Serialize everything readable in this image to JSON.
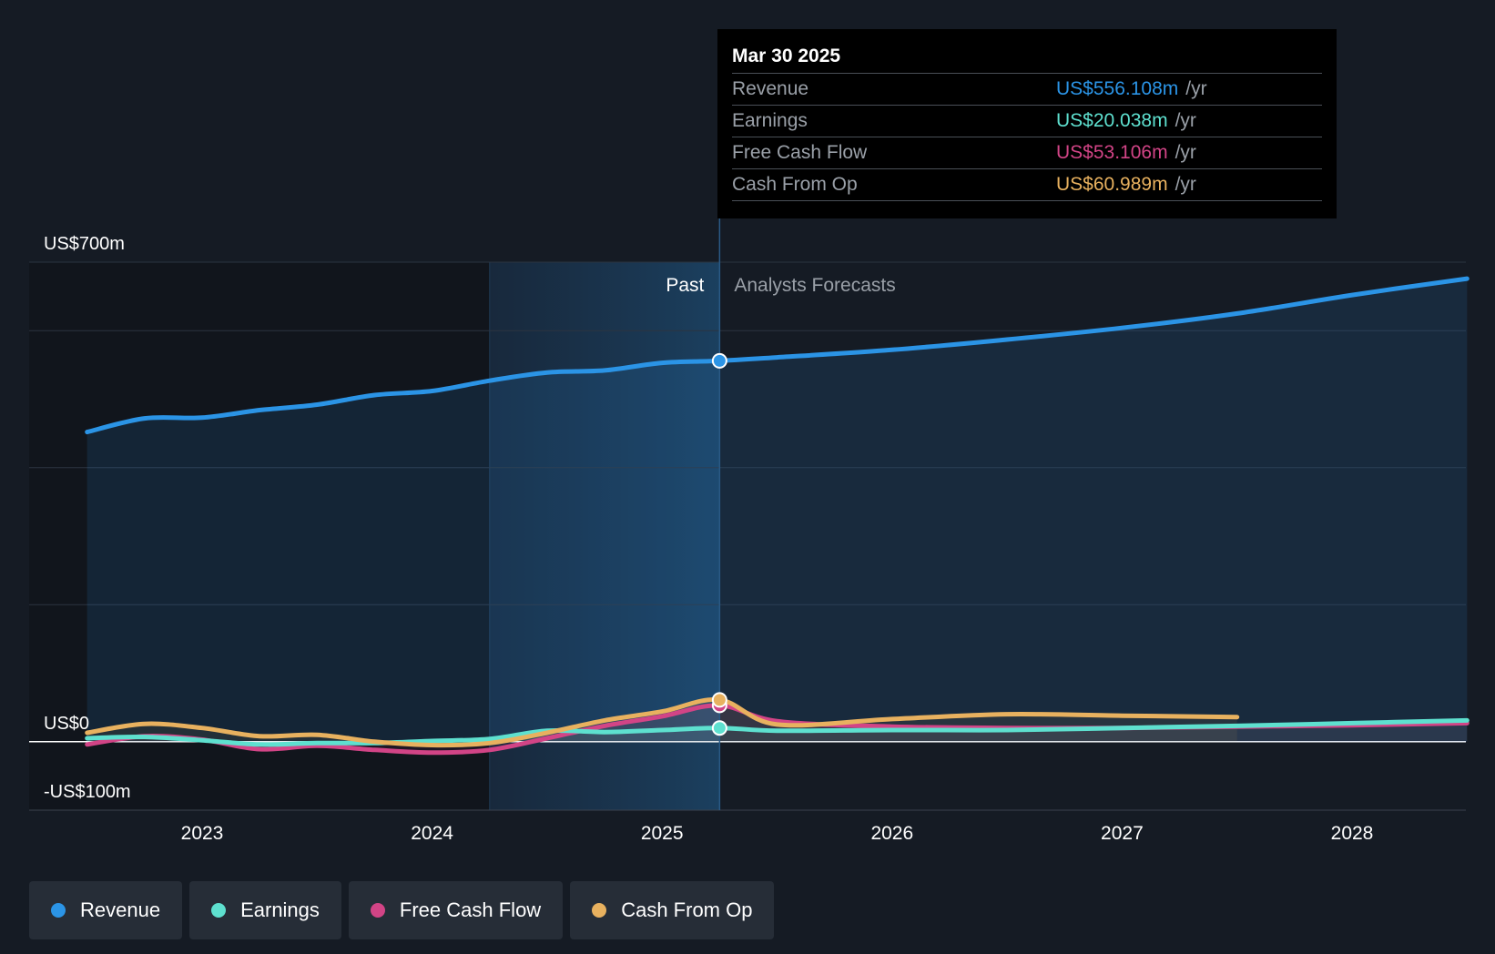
{
  "colors": {
    "revenue": "#2b94e6",
    "earnings": "#5ee0cf",
    "fcf": "#d24486",
    "cfo": "#e8b15f"
  },
  "tooltip": {
    "date": "Mar 30 2025",
    "rows": [
      {
        "label": "Revenue",
        "value": "US$556.108m",
        "unit": "/yr"
      },
      {
        "label": "Earnings",
        "value": "US$20.038m",
        "unit": "/yr"
      },
      {
        "label": "Free Cash Flow",
        "value": "US$53.106m",
        "unit": "/yr"
      },
      {
        "label": "Cash From Op",
        "value": "US$60.989m",
        "unit": "/yr"
      }
    ]
  },
  "legend": [
    {
      "label": "Revenue",
      "key": "revenue"
    },
    {
      "label": "Earnings",
      "key": "earnings"
    },
    {
      "label": "Free Cash Flow",
      "key": "fcf"
    },
    {
      "label": "Cash From Op",
      "key": "cfo"
    }
  ],
  "chart_data": {
    "type": "line",
    "title": "",
    "xlabel": "",
    "ylabel": "",
    "ylim": [
      -100,
      700
    ],
    "xlim": [
      2022.25,
      2028.5
    ],
    "y_tick_labels": [
      {
        "value": 700,
        "label": "US$700m"
      },
      {
        "value": 0,
        "label": "US$0"
      },
      {
        "value": -100,
        "label": "-US$100m"
      }
    ],
    "gridlines": [
      700,
      600,
      400,
      200,
      0
    ],
    "x_ticks": [
      2023,
      2024,
      2025,
      2026,
      2027,
      2028
    ],
    "x_tick_labels": [
      "2023",
      "2024",
      "2025",
      "2026",
      "2027",
      "2028"
    ],
    "past_label": "Past",
    "forecast_label": "Analysts Forecasts",
    "past_band_start": 2024.25,
    "present": 2025.25,
    "series": [
      {
        "name": "Revenue",
        "key": "revenue",
        "points": [
          [
            2022.5,
            452
          ],
          [
            2022.75,
            472
          ],
          [
            2023.0,
            473
          ],
          [
            2023.25,
            484
          ],
          [
            2023.5,
            492
          ],
          [
            2023.75,
            506
          ],
          [
            2024.0,
            512
          ],
          [
            2024.25,
            527
          ],
          [
            2024.5,
            539
          ],
          [
            2024.75,
            542
          ],
          [
            2025.0,
            553
          ],
          [
            2025.25,
            556
          ],
          [
            2025.5,
            561
          ],
          [
            2026.0,
            572
          ],
          [
            2026.5,
            587
          ],
          [
            2027.0,
            604
          ],
          [
            2027.5,
            625
          ],
          [
            2028.0,
            652
          ],
          [
            2028.5,
            676
          ]
        ]
      },
      {
        "name": "Earnings",
        "key": "earnings",
        "points": [
          [
            2022.5,
            5
          ],
          [
            2022.75,
            7
          ],
          [
            2023.0,
            2
          ],
          [
            2023.25,
            -4
          ],
          [
            2023.5,
            -2
          ],
          [
            2023.75,
            -2
          ],
          [
            2024.0,
            1
          ],
          [
            2024.25,
            4
          ],
          [
            2024.5,
            16
          ],
          [
            2024.75,
            14
          ],
          [
            2025.0,
            17
          ],
          [
            2025.25,
            20
          ],
          [
            2025.5,
            16
          ],
          [
            2026.0,
            17
          ],
          [
            2026.5,
            17
          ],
          [
            2027.0,
            20
          ],
          [
            2027.5,
            23
          ],
          [
            2028.0,
            27
          ],
          [
            2028.5,
            31
          ]
        ]
      },
      {
        "name": "Free Cash Flow",
        "key": "fcf",
        "points": [
          [
            2022.5,
            -4
          ],
          [
            2022.75,
            8
          ],
          [
            2023.0,
            3
          ],
          [
            2023.25,
            -11
          ],
          [
            2023.5,
            -6
          ],
          [
            2023.75,
            -12
          ],
          [
            2024.0,
            -16
          ],
          [
            2024.25,
            -12
          ],
          [
            2024.5,
            5
          ],
          [
            2024.75,
            23
          ],
          [
            2025.0,
            37
          ],
          [
            2025.25,
            53
          ],
          [
            2025.5,
            30
          ],
          [
            2026.0,
            22
          ],
          [
            2026.5,
            20
          ],
          [
            2027.0,
            20
          ],
          [
            2027.5,
            22
          ],
          [
            2028.0,
            24
          ],
          [
            2028.5,
            27
          ]
        ]
      },
      {
        "name": "Cash From Op",
        "key": "cfo",
        "points": [
          [
            2022.5,
            13
          ],
          [
            2022.75,
            26
          ],
          [
            2023.0,
            20
          ],
          [
            2023.25,
            8
          ],
          [
            2023.5,
            10
          ],
          [
            2023.75,
            0
          ],
          [
            2024.0,
            -5
          ],
          [
            2024.25,
            -2
          ],
          [
            2024.5,
            13
          ],
          [
            2024.75,
            31
          ],
          [
            2025.0,
            44
          ],
          [
            2025.25,
            61
          ],
          [
            2025.5,
            25
          ],
          [
            2026.0,
            33
          ],
          [
            2026.5,
            40
          ],
          [
            2027.0,
            38
          ],
          [
            2027.5,
            36
          ]
        ]
      }
    ]
  }
}
